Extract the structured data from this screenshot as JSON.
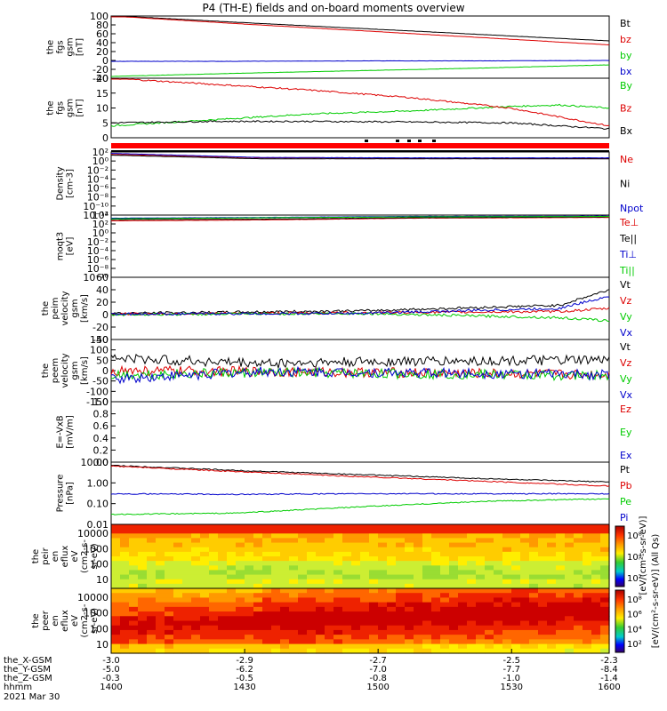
{
  "title": "P4 (TH-E) fields and on-board moments overview",
  "colors": {
    "black": "#000000",
    "red": "#dd0000",
    "green": "#00cc00",
    "blue": "#0000cc"
  },
  "chart_data": [
    {
      "type": "line",
      "ylabel": [
        "the",
        "fgs",
        "gsm",
        "[nT]"
      ],
      "ylim": [
        -40,
        100
      ],
      "ticks": [
        "100",
        "80",
        "60",
        "40",
        "20",
        "0",
        "-20",
        "-40"
      ],
      "tick_values": [
        100,
        80,
        60,
        40,
        20,
        0,
        -20,
        -40
      ],
      "legend": [
        {
          "label": "Bt",
          "color": "#000000"
        },
        {
          "label": "bz",
          "color": "#dd0000"
        },
        {
          "label": "by",
          "color": "#00cc00"
        },
        {
          "label": "bx",
          "color": "#0000cc"
        }
      ],
      "series": [
        {
          "name": "Bt",
          "color": "#000000",
          "x": [
            0,
            0.25,
            0.5,
            0.75,
            1
          ],
          "y": [
            101,
            86,
            72,
            58,
            44
          ]
        },
        {
          "name": "bz",
          "color": "#dd0000",
          "x": [
            0,
            0.25,
            0.5,
            0.75,
            1
          ],
          "y": [
            100,
            83,
            67,
            51,
            35
          ]
        },
        {
          "name": "by",
          "color": "#00cc00",
          "x": [
            0,
            0.25,
            0.5,
            0.75,
            1
          ],
          "y": [
            -36,
            -29,
            -23,
            -17,
            -10
          ]
        },
        {
          "name": "bx",
          "color": "#0000cc",
          "x": [
            0,
            0.25,
            0.5,
            0.75,
            1
          ],
          "y": [
            -2,
            -2,
            -1,
            -1,
            0
          ]
        }
      ]
    },
    {
      "type": "line",
      "ylabel": [
        "the",
        "fgs",
        "gsm",
        "[nT]"
      ],
      "ylim": [
        0,
        20
      ],
      "ticks": [
        "20",
        "15",
        "10",
        "5",
        "0"
      ],
      "tick_values": [
        20,
        15,
        10,
        5,
        0
      ],
      "legend": [
        {
          "label": "By",
          "color": "#00cc00"
        },
        {
          "label": "Bz",
          "color": "#dd0000"
        },
        {
          "label": "Bx",
          "color": "#000000"
        }
      ],
      "series": [
        {
          "name": "By",
          "color": "#00cc00",
          "x": [
            0,
            0.2,
            0.4,
            0.6,
            0.8,
            0.9,
            1
          ],
          "y": [
            4,
            6,
            8,
            9,
            10.5,
            11,
            10
          ]
        },
        {
          "name": "Bz",
          "color": "#dd0000",
          "x": [
            0,
            0.2,
            0.4,
            0.6,
            0.8,
            0.9,
            1
          ],
          "y": [
            20,
            18,
            16,
            13.5,
            10,
            7,
            4
          ]
        },
        {
          "name": "Bx",
          "color": "#000000",
          "x": [
            0,
            0.2,
            0.4,
            0.6,
            0.8,
            0.9,
            1
          ],
          "y": [
            5,
            5.5,
            5.5,
            5.3,
            5,
            4,
            3
          ]
        }
      ]
    },
    {
      "type": "line",
      "scale": "log",
      "ylabel": [
        "Density",
        "[cm-3]"
      ],
      "ylim": [
        1e-12,
        100
      ],
      "ticks": [
        "10²",
        "10⁰",
        "10⁻²",
        "10⁻⁴",
        "10⁻⁶",
        "10⁻⁸",
        "10⁻¹⁰",
        "10⁻¹²"
      ],
      "tick_values": [
        100,
        1,
        0.01,
        0.0001,
        1e-06,
        1e-08,
        1e-10,
        1e-12
      ],
      "legend": [
        {
          "label": "Ne",
          "color": "#dd0000"
        },
        {
          "label": "Ni",
          "color": "#000000"
        },
        {
          "label": "Npot",
          "color": "#0000cc"
        }
      ],
      "series": [
        {
          "name": "Ne",
          "color": "#dd0000",
          "x": [
            0,
            0.3,
            0.6,
            1
          ],
          "y": [
            30,
            5,
            4,
            4
          ]
        },
        {
          "name": "Ni",
          "color": "#000000",
          "x": [
            0,
            0.3,
            0.6,
            1
          ],
          "y": [
            20,
            3,
            3,
            3
          ]
        },
        {
          "name": "Npot",
          "color": "#0000cc",
          "x": [
            0,
            0.3,
            0.6,
            1
          ],
          "y": [
            50,
            6,
            5,
            5
          ]
        }
      ]
    },
    {
      "type": "line",
      "scale": "log",
      "ylabel": [
        "moqt3",
        "[eV]"
      ],
      "ylim": [
        1e-10,
        10000.0
      ],
      "ticks": [
        "10⁴",
        "10²",
        "10⁰",
        "10⁻²",
        "10⁻⁴",
        "10⁻⁶",
        "10⁻⁸",
        "10⁻¹⁰"
      ],
      "tick_values": [
        10000.0,
        100,
        1,
        0.01,
        0.0001,
        1e-06,
        1e-08,
        1e-10
      ],
      "legend": [
        {
          "label": "Te⊥",
          "color": "#dd0000"
        },
        {
          "label": "Te||",
          "color": "#000000"
        },
        {
          "label": "Ti⊥",
          "color": "#0000cc"
        },
        {
          "label": "Ti||",
          "color": "#00cc00"
        }
      ],
      "series": [
        {
          "name": "Te⊥",
          "color": "#dd0000",
          "x": [
            0,
            0.3,
            0.6,
            1
          ],
          "y": [
            500,
            800,
            2000,
            3000
          ]
        },
        {
          "name": "Te||",
          "color": "#000000",
          "x": [
            0,
            0.3,
            0.6,
            1
          ],
          "y": [
            1000,
            1200,
            2500,
            4000
          ]
        },
        {
          "name": "Ti⊥",
          "color": "#0000cc",
          "x": [
            0,
            0.3,
            0.6,
            1
          ],
          "y": [
            2000,
            3000,
            5000,
            6000
          ]
        },
        {
          "name": "Ti||",
          "color": "#00cc00",
          "x": [
            0,
            0.3,
            0.6,
            1
          ],
          "y": [
            1500,
            2500,
            4000,
            5000
          ]
        }
      ]
    },
    {
      "type": "line",
      "ylabel": [
        "the",
        "peim",
        "velocity",
        "gsm",
        "[km/s]"
      ],
      "ylim": [
        -40,
        60
      ],
      "ticks": [
        "60",
        "40",
        "20",
        "0",
        "-20",
        "-40"
      ],
      "tick_values": [
        60,
        40,
        20,
        0,
        -20,
        -40
      ],
      "legend": [
        {
          "label": "Vt",
          "color": "#000000"
        },
        {
          "label": "Vz",
          "color": "#dd0000"
        },
        {
          "label": "Vy",
          "color": "#00cc00"
        },
        {
          "label": "Vx",
          "color": "#0000cc"
        }
      ],
      "series": [
        {
          "name": "Vt",
          "color": "#000000",
          "x": [
            0,
            0.5,
            0.9,
            1
          ],
          "y": [
            2,
            6,
            15,
            40
          ]
        },
        {
          "name": "Vz",
          "color": "#dd0000",
          "x": [
            0,
            0.5,
            0.9,
            1
          ],
          "y": [
            1,
            3,
            5,
            10
          ]
        },
        {
          "name": "Vy",
          "color": "#00cc00",
          "x": [
            0,
            0.5,
            0.9,
            1
          ],
          "y": [
            0,
            2,
            -5,
            -10
          ]
        },
        {
          "name": "Vx",
          "color": "#0000cc",
          "x": [
            0,
            0.5,
            0.9,
            1
          ],
          "y": [
            1,
            2,
            10,
            30
          ]
        }
      ]
    },
    {
      "type": "line",
      "ylabel": [
        "the",
        "peem",
        "velocity",
        "gsm",
        "[km/s]"
      ],
      "ylim": [
        -150,
        150
      ],
      "ticks": [
        "150",
        "100",
        "50",
        "0",
        "-50",
        "-100",
        "-150"
      ],
      "tick_values": [
        150,
        100,
        50,
        0,
        -50,
        -100,
        -150
      ],
      "legend": [
        {
          "label": "Vt",
          "color": "#000000"
        },
        {
          "label": "Vz",
          "color": "#dd0000"
        },
        {
          "label": "Vy",
          "color": "#00cc00"
        },
        {
          "label": "Vx",
          "color": "#0000cc"
        }
      ],
      "series": [
        {
          "name": "Vt",
          "color": "#000000",
          "x": [
            0,
            0.3,
            0.6,
            1
          ],
          "y": [
            60,
            35,
            45,
            50
          ]
        },
        {
          "name": "Vz",
          "color": "#dd0000",
          "x": [
            0,
            0.3,
            0.6,
            1
          ],
          "y": [
            0,
            -5,
            -10,
            -20
          ]
        },
        {
          "name": "Vy",
          "color": "#00cc00",
          "x": [
            0,
            0.3,
            0.6,
            1
          ],
          "y": [
            -20,
            -10,
            -15,
            -25
          ]
        },
        {
          "name": "Vx",
          "color": "#0000cc",
          "x": [
            0,
            0.3,
            0.6,
            1
          ],
          "y": [
            -40,
            -5,
            -10,
            -20
          ]
        }
      ]
    },
    {
      "type": "line",
      "ylabel": [
        "E=-VxB",
        "[mV/m]"
      ],
      "ylim": [
        0,
        1
      ],
      "ticks": [
        "1.0",
        "0.8",
        "0.6",
        "0.4",
        "0.2",
        "0.0"
      ],
      "tick_values": [
        1,
        0.8,
        0.6,
        0.4,
        0.2,
        0
      ],
      "legend": [
        {
          "label": "Ez",
          "color": "#dd0000"
        },
        {
          "label": "Ey",
          "color": "#00cc00"
        },
        {
          "label": "Ex",
          "color": "#0000cc"
        }
      ],
      "series": []
    },
    {
      "type": "line",
      "scale": "log",
      "ylabel": [
        "Pressure",
        "[nPa]"
      ],
      "ylim": [
        0.01,
        10
      ],
      "ticks": [
        "10.00",
        "1.00",
        "0.10",
        "0.01"
      ],
      "tick_values": [
        10,
        1,
        0.1,
        0.01
      ],
      "legend": [
        {
          "label": "Pt",
          "color": "#000000"
        },
        {
          "label": "Pb",
          "color": "#dd0000"
        },
        {
          "label": "Pe",
          "color": "#00cc00"
        },
        {
          "label": "Pi",
          "color": "#0000cc"
        }
      ],
      "series": [
        {
          "name": "Pt",
          "color": "#000000",
          "x": [
            0,
            0.25,
            0.5,
            0.75,
            1
          ],
          "y": [
            7,
            4,
            2.5,
            1.6,
            1.1
          ]
        },
        {
          "name": "Pb",
          "color": "#dd0000",
          "x": [
            0,
            0.25,
            0.5,
            0.75,
            1
          ],
          "y": [
            6.5,
            3.5,
            2,
            1.2,
            0.7
          ]
        },
        {
          "name": "Pe",
          "color": "#00cc00",
          "x": [
            0,
            0.25,
            0.5,
            0.75,
            1
          ],
          "y": [
            0.03,
            0.035,
            0.07,
            0.13,
            0.17
          ]
        },
        {
          "name": "Pi",
          "color": "#0000cc",
          "x": [
            0,
            0.25,
            0.5,
            0.75,
            1
          ],
          "y": [
            0.3,
            0.28,
            0.3,
            0.3,
            0.3
          ]
        }
      ]
    },
    {
      "type": "heatmap",
      "ylabel": [
        "the",
        "peir",
        "en",
        "eflux",
        "eV",
        "(cm2-s-",
        "sr-eV)"
      ],
      "ticks": [
        "10000",
        "1000",
        "100",
        "10"
      ],
      "colorbar_ticks": [
        "10⁸",
        "10⁴",
        "10²"
      ]
    },
    {
      "type": "heatmap",
      "ylabel": [
        "the",
        "peer",
        "en",
        "eflux",
        "eV",
        "(cm2-s-",
        "sr-eV)"
      ],
      "ticks": [
        "10000",
        "1000",
        "100",
        "10"
      ],
      "colorbar_ticks": [
        "10⁸",
        "10⁶",
        "10⁴",
        "10²"
      ]
    }
  ],
  "colorbar_label": "[eV/(cm²-s-sr-eV)] (All Qs)",
  "colorbar_label_overlap": "[eV/(cm²-s-sr-eV)]",
  "xaxis": {
    "rows": [
      {
        "label": "the_X-GSM",
        "values": [
          "-3.0",
          "-2.9",
          "-2.7",
          "-2.5",
          "-2.3"
        ]
      },
      {
        "label": "the_Y-GSM",
        "values": [
          "-5.0",
          "-6.2",
          "-7.0",
          "-7.7",
          "-8.4"
        ]
      },
      {
        "label": "the_Z-GSM",
        "values": [
          "-0.3",
          "-0.5",
          "-0.8",
          "-1.0",
          "-1.4"
        ]
      },
      {
        "label": "hhmm",
        "values": [
          "1400",
          "1430",
          "1500",
          "1530",
          "1600"
        ]
      }
    ],
    "date": "2021 Mar 30"
  }
}
